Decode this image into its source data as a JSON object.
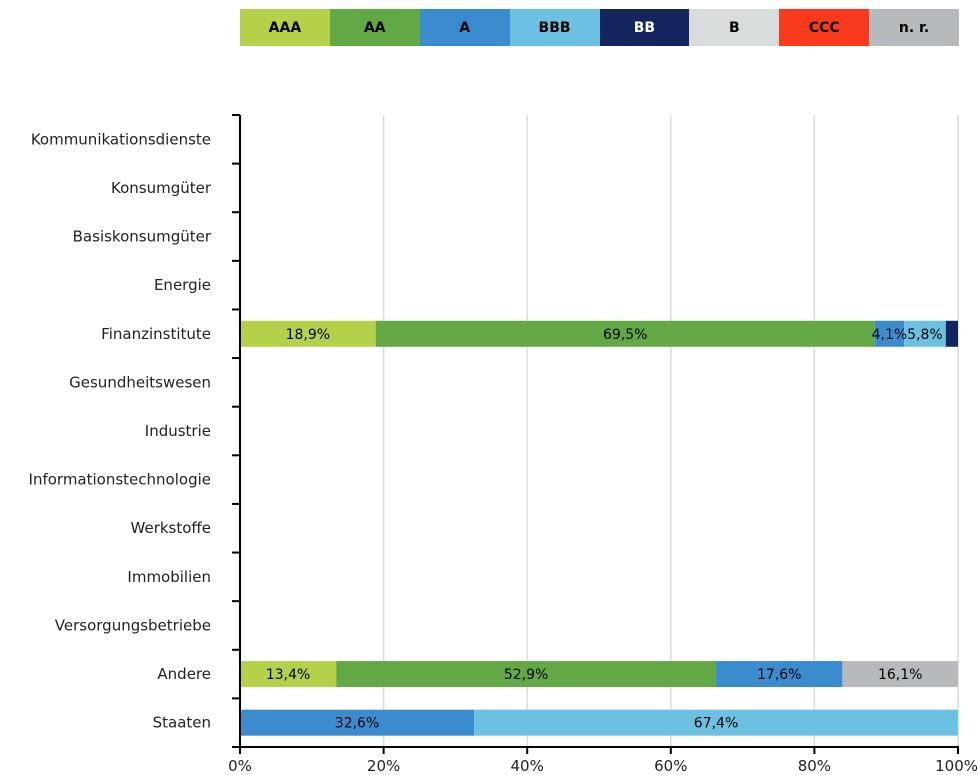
{
  "chart_data": {
    "type": "bar",
    "orientation": "horizontal",
    "stacked": true,
    "categories": [
      "Kommunikationsdienste",
      "Konsumgüter",
      "Basiskonsumgüter",
      "Energie",
      "Finanzinstitute",
      "Gesundheitswesen",
      "Industrie",
      "Informationstechnologie",
      "Werkstoffe",
      "Immobilien",
      "Versorgungsbetriebe",
      "Andere",
      "Staaten"
    ],
    "series": [
      {
        "name": "AAA",
        "color": "#b5d14a",
        "text_color": "#000000",
        "values": [
          0,
          0,
          0,
          0,
          18.9,
          0,
          0,
          0,
          0,
          0,
          0,
          13.4,
          0
        ]
      },
      {
        "name": "AA",
        "color": "#62a845",
        "text_color": "#000000",
        "values": [
          0,
          0,
          0,
          0,
          69.5,
          0,
          0,
          0,
          0,
          0,
          0,
          52.9,
          0
        ]
      },
      {
        "name": "A",
        "color": "#3a8ccf",
        "text_color": "#000000",
        "values": [
          0,
          0,
          0,
          0,
          4.1,
          0,
          0,
          0,
          0,
          0,
          0,
          17.6,
          32.6
        ]
      },
      {
        "name": "BBB",
        "color": "#6cc1e2",
        "text_color": "#000000",
        "values": [
          0,
          0,
          0,
          0,
          5.8,
          0,
          0,
          0,
          0,
          0,
          0,
          0,
          67.4
        ]
      },
      {
        "name": "BB",
        "color": "#12255e",
        "text_color": "#ffffff",
        "values": [
          0,
          0,
          0,
          0,
          1.7,
          0,
          0,
          0,
          0,
          0,
          0,
          0,
          0
        ]
      },
      {
        "name": "B",
        "color": "#d8dcdc",
        "text_color": "#000000",
        "values": [
          0,
          0,
          0,
          0,
          0,
          0,
          0,
          0,
          0,
          0,
          0,
          0,
          0
        ]
      },
      {
        "name": "CCC",
        "color": "#fa3a1c",
        "text_color": "#000000",
        "values": [
          0,
          0,
          0,
          0,
          0,
          0,
          0,
          0,
          0,
          0,
          0,
          0,
          0
        ]
      },
      {
        "name": "n. r.",
        "color": "#b7babc",
        "text_color": "#000000",
        "values": [
          0,
          0,
          0,
          0,
          0,
          0,
          0,
          0,
          0,
          0,
          0,
          16.1,
          0
        ]
      }
    ],
    "data_labels": [
      {
        "row": 4,
        "series": 0,
        "text": "18,9%"
      },
      {
        "row": 4,
        "series": 1,
        "text": "69,5%"
      },
      {
        "row": 4,
        "series": 2,
        "text": "4,1%"
      },
      {
        "row": 4,
        "series": 3,
        "text": "5,8%"
      },
      {
        "row": 11,
        "series": 0,
        "text": "13,4%"
      },
      {
        "row": 11,
        "series": 1,
        "text": "52,9%"
      },
      {
        "row": 11,
        "series": 2,
        "text": "17,6%"
      },
      {
        "row": 11,
        "series": 7,
        "text": "16,1%"
      },
      {
        "row": 12,
        "series": 2,
        "text": "32,6%"
      },
      {
        "row": 12,
        "series": 3,
        "text": "67,4%"
      }
    ],
    "xlim": [
      0,
      100
    ],
    "xticks": [
      0,
      20,
      40,
      60,
      80,
      100
    ],
    "xtick_labels": [
      "0%",
      "20%",
      "40%",
      "60%",
      "80%",
      "100%"
    ],
    "grid": true,
    "legend": "top",
    "title": "",
    "xlabel": "",
    "ylabel": ""
  }
}
